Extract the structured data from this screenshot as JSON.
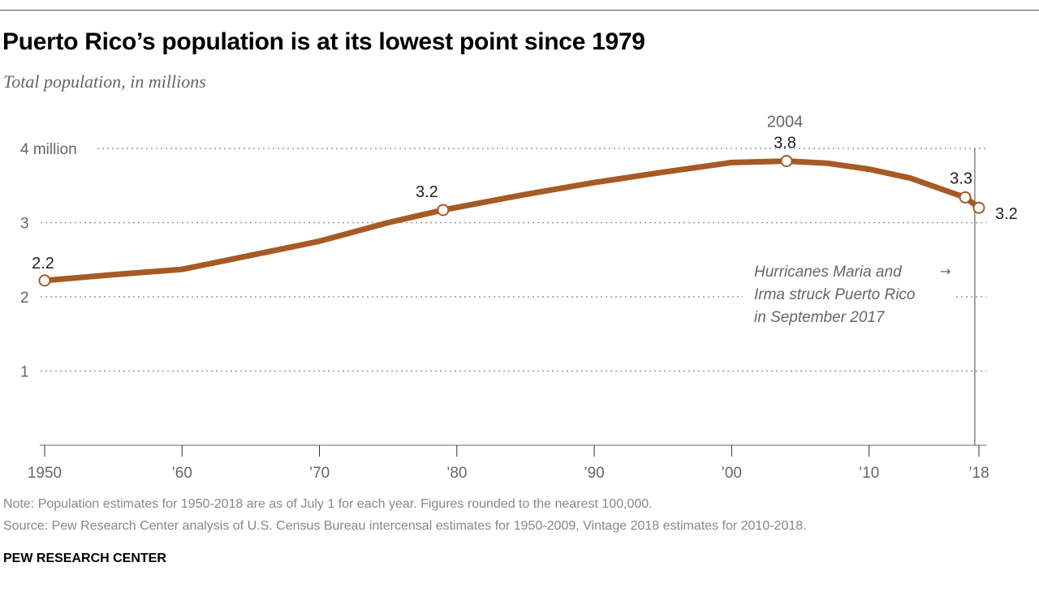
{
  "title": "Puerto Rico’s population is at its lowest point since 1979",
  "subtitle": "Total population, in millions",
  "note": "Note: Population estimates for 1950-2018 are as of July 1 for each year. Figures rounded to the nearest 100,000.",
  "source": "Source: Pew Research Center analysis of U.S. Census Bureau intercensal estimates for 1950-2009, Vintage 2018 estimates for 2010-2018.",
  "brand": "PEW RESEARCH CENTER",
  "colors": {
    "line": "#a65a24",
    "grid": "#888888",
    "label": "#222222",
    "axis_text": "#666666"
  },
  "chart_data": {
    "type": "line",
    "title": "Puerto Rico’s population is at its lowest point since 1979",
    "ylabel": "",
    "xlabel": "",
    "xlim": [
      1950,
      2018
    ],
    "ylim": [
      0,
      4
    ],
    "grid": true,
    "x_ticks": [
      1950,
      1960,
      1970,
      1980,
      1990,
      2000,
      2010,
      2018
    ],
    "x_tick_labels": [
      "1950",
      "’60",
      "’70",
      "’80",
      "’90",
      "’00",
      "’10",
      "’18"
    ],
    "y_ticks": [
      1,
      2,
      3,
      4
    ],
    "y_tick_labels": [
      "1",
      "2",
      "3",
      "4 million"
    ],
    "series": [
      {
        "x": [
          1950,
          1955,
          1960,
          1965,
          1970,
          1975,
          1979,
          1985,
          1990,
          1995,
          2000,
          2004,
          2007,
          2010,
          2013,
          2015,
          2017,
          2018
        ],
        "y": [
          2.22,
          2.3,
          2.37,
          2.56,
          2.75,
          3.0,
          3.17,
          3.38,
          3.54,
          3.68,
          3.81,
          3.83,
          3.8,
          3.72,
          3.6,
          3.47,
          3.34,
          3.2
        ]
      }
    ],
    "markers": [
      {
        "x": 1950,
        "y": 2.2,
        "label": "2.2"
      },
      {
        "x": 1979,
        "y": 3.2,
        "label": "3.2"
      },
      {
        "x": 2004,
        "y": 3.8,
        "label": "3.8",
        "year_label": "2004"
      },
      {
        "x": 2017,
        "y": 3.3,
        "label": "3.3"
      },
      {
        "x": 2018,
        "y": 3.2,
        "label": "3.2"
      }
    ],
    "annotation": {
      "x": 2017.7,
      "lines": [
        "Hurricanes Maria and",
        "Irma struck Puerto Rico",
        "in September 2017"
      ],
      "arrow": "→"
    }
  }
}
